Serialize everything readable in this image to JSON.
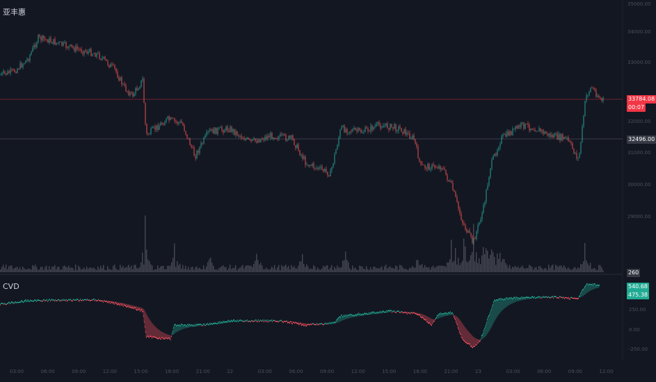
{
  "header": {
    "symbol": "亚丰惠"
  },
  "price_axis": {
    "ticks": [
      "34000.00",
      "33000.00",
      "32000.00",
      "31000.00",
      "30000.00",
      "29000.00"
    ],
    "top_tick": "35000.00",
    "last_price": "33784.08",
    "countdown": "00:07",
    "level_price": "32496.00",
    "volume_tag": "260"
  },
  "cvd_panel": {
    "title": "CVD",
    "ticks": [
      "250.00",
      "0.00",
      "-250.00"
    ],
    "last_values": [
      "540.68",
      "475.38"
    ]
  },
  "time_axis": {
    "labels": [
      "03:00",
      "06:00",
      "09:00",
      "12:00",
      "15:00",
      "18:00",
      "21:00",
      "22",
      "03:00",
      "06:00",
      "09:00",
      "12:00",
      "15:00",
      "18:00",
      "21:00",
      "23",
      "03:00",
      "06:00",
      "09:00",
      "12:00"
    ]
  },
  "colors": {
    "background": "#131722",
    "up": "#26a69a",
    "down": "#ef5350",
    "cvd_up": "#22ab94",
    "cvd_down": "#f7525f",
    "volume": "#5d606b",
    "last_price_line": "#f23645"
  }
}
